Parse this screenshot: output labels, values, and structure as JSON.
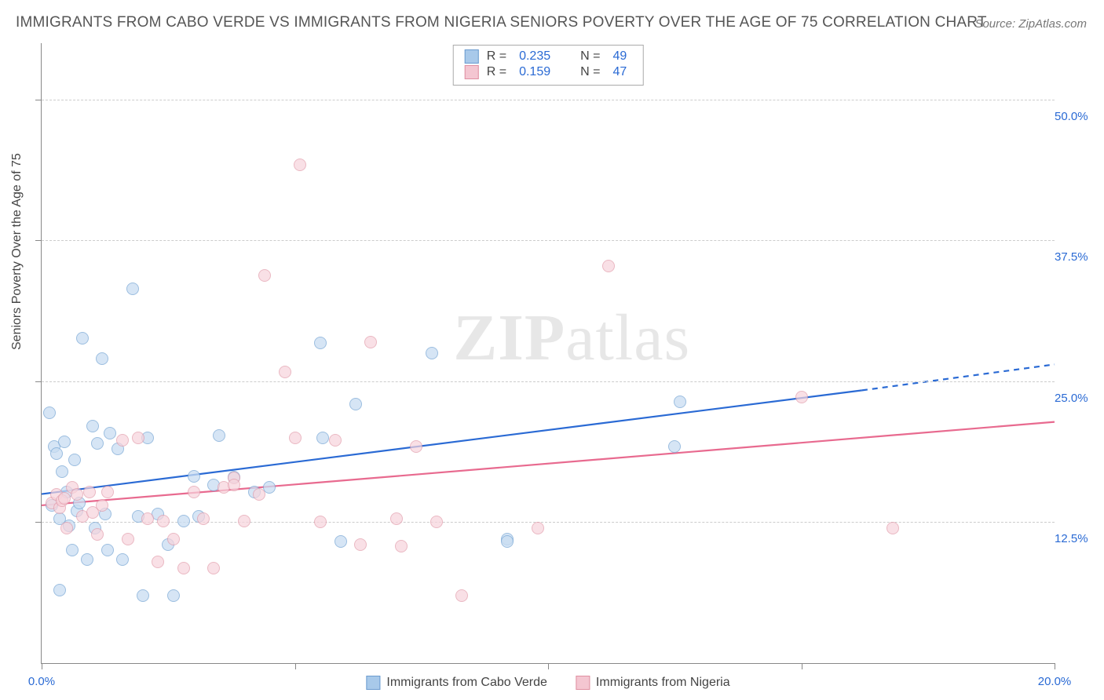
{
  "title": "IMMIGRANTS FROM CABO VERDE VS IMMIGRANTS FROM NIGERIA SENIORS POVERTY OVER THE AGE OF 75 CORRELATION CHART",
  "source": "Source: ZipAtlas.com",
  "y_axis_label": "Seniors Poverty Over the Age of 75",
  "watermark_bold": "ZIP",
  "watermark_rest": "atlas",
  "x_range": [
    0,
    20
  ],
  "y_range": [
    0,
    55
  ],
  "x_ticks": [
    0,
    5,
    10,
    15,
    20
  ],
  "x_tick_labels": {
    "0": "0.0%",
    "20": "20.0%"
  },
  "y_gridlines": [
    12.5,
    25,
    37.5,
    50
  ],
  "y_grid_labels": {
    "12.5": "12.5%",
    "25": "25.0%",
    "37.5": "37.5%",
    "50": "50.0%"
  },
  "series": [
    {
      "name": "Immigrants from Cabo Verde",
      "fill": "#c9ddf2",
      "fill_opacity": 0.75,
      "stroke": "#7ba9d6",
      "swatch_fill": "#a8c9ea",
      "swatch_stroke": "#6b9bcf",
      "line_color": "#2a6ad4",
      "r_label": "R =",
      "r_value": "0.235",
      "n_label": "N =",
      "n_value": "49",
      "trend": {
        "x1": 0,
        "y1": 15.0,
        "x2": 16.2,
        "y2": 24.2,
        "x3": 20,
        "y3": 26.5
      },
      "points": [
        [
          0.15,
          22.2
        ],
        [
          0.2,
          14.0
        ],
        [
          0.25,
          19.2
        ],
        [
          0.3,
          18.6
        ],
        [
          0.35,
          6.5
        ],
        [
          0.35,
          12.8
        ],
        [
          0.4,
          17.0
        ],
        [
          0.45,
          19.6
        ],
        [
          0.5,
          15.2
        ],
        [
          0.55,
          12.2
        ],
        [
          0.6,
          10.0
        ],
        [
          0.65,
          18.0
        ],
        [
          0.7,
          13.5
        ],
        [
          0.75,
          14.2
        ],
        [
          0.8,
          28.8
        ],
        [
          0.9,
          9.2
        ],
        [
          1.0,
          21.0
        ],
        [
          1.05,
          12.0
        ],
        [
          1.1,
          19.5
        ],
        [
          1.2,
          27.0
        ],
        [
          1.25,
          13.2
        ],
        [
          1.3,
          10.0
        ],
        [
          1.35,
          20.4
        ],
        [
          1.5,
          19.0
        ],
        [
          1.6,
          9.2
        ],
        [
          1.8,
          33.2
        ],
        [
          1.9,
          13.0
        ],
        [
          2.0,
          6.0
        ],
        [
          2.1,
          20.0
        ],
        [
          2.3,
          13.2
        ],
        [
          2.5,
          10.5
        ],
        [
          2.6,
          6.0
        ],
        [
          2.8,
          12.6
        ],
        [
          3.0,
          16.6
        ],
        [
          3.1,
          13.0
        ],
        [
          3.4,
          15.8
        ],
        [
          3.5,
          20.2
        ],
        [
          3.8,
          16.5
        ],
        [
          4.2,
          15.2
        ],
        [
          4.5,
          15.6
        ],
        [
          5.5,
          28.4
        ],
        [
          5.55,
          20.0
        ],
        [
          5.9,
          10.8
        ],
        [
          6.2,
          23.0
        ],
        [
          7.7,
          27.5
        ],
        [
          9.2,
          11.0
        ],
        [
          9.2,
          10.8
        ],
        [
          12.5,
          19.2
        ],
        [
          12.6,
          23.2
        ]
      ]
    },
    {
      "name": "Immigrants from Nigeria",
      "fill": "#f7d4dc",
      "fill_opacity": 0.7,
      "stroke": "#e29baa",
      "swatch_fill": "#f4c6d1",
      "swatch_stroke": "#df8fa1",
      "line_color": "#e86a8f",
      "r_label": "R =",
      "r_value": "0.159",
      "n_label": "N =",
      "n_value": "47",
      "trend": {
        "x1": 0,
        "y1": 14.0,
        "x2": 20,
        "y2": 21.4
      },
      "points": [
        [
          0.2,
          14.2
        ],
        [
          0.3,
          15.0
        ],
        [
          0.35,
          13.8
        ],
        [
          0.4,
          14.4
        ],
        [
          0.45,
          14.6
        ],
        [
          0.5,
          12.0
        ],
        [
          0.6,
          15.6
        ],
        [
          0.7,
          15.0
        ],
        [
          0.8,
          13.0
        ],
        [
          0.95,
          15.2
        ],
        [
          1.0,
          13.4
        ],
        [
          1.1,
          11.4
        ],
        [
          1.2,
          14.0
        ],
        [
          1.3,
          15.2
        ],
        [
          1.6,
          19.8
        ],
        [
          1.7,
          11.0
        ],
        [
          1.9,
          20.0
        ],
        [
          2.1,
          12.8
        ],
        [
          2.3,
          9.0
        ],
        [
          2.4,
          12.6
        ],
        [
          2.6,
          11.0
        ],
        [
          2.8,
          8.4
        ],
        [
          3.0,
          15.2
        ],
        [
          3.2,
          12.8
        ],
        [
          3.4,
          8.4
        ],
        [
          3.6,
          15.6
        ],
        [
          3.8,
          16.4
        ],
        [
          3.8,
          15.8
        ],
        [
          4.0,
          12.6
        ],
        [
          4.3,
          15.0
        ],
        [
          4.4,
          34.4
        ],
        [
          4.8,
          25.8
        ],
        [
          5.0,
          20.0
        ],
        [
          5.1,
          44.2
        ],
        [
          5.5,
          12.5
        ],
        [
          5.8,
          19.8
        ],
        [
          6.3,
          10.5
        ],
        [
          6.5,
          28.5
        ],
        [
          7.0,
          12.8
        ],
        [
          7.1,
          10.4
        ],
        [
          7.4,
          19.2
        ],
        [
          7.8,
          12.5
        ],
        [
          8.3,
          6.0
        ],
        [
          9.8,
          12.0
        ],
        [
          11.2,
          35.2
        ],
        [
          15.0,
          23.6
        ],
        [
          16.8,
          12.0
        ]
      ]
    }
  ]
}
